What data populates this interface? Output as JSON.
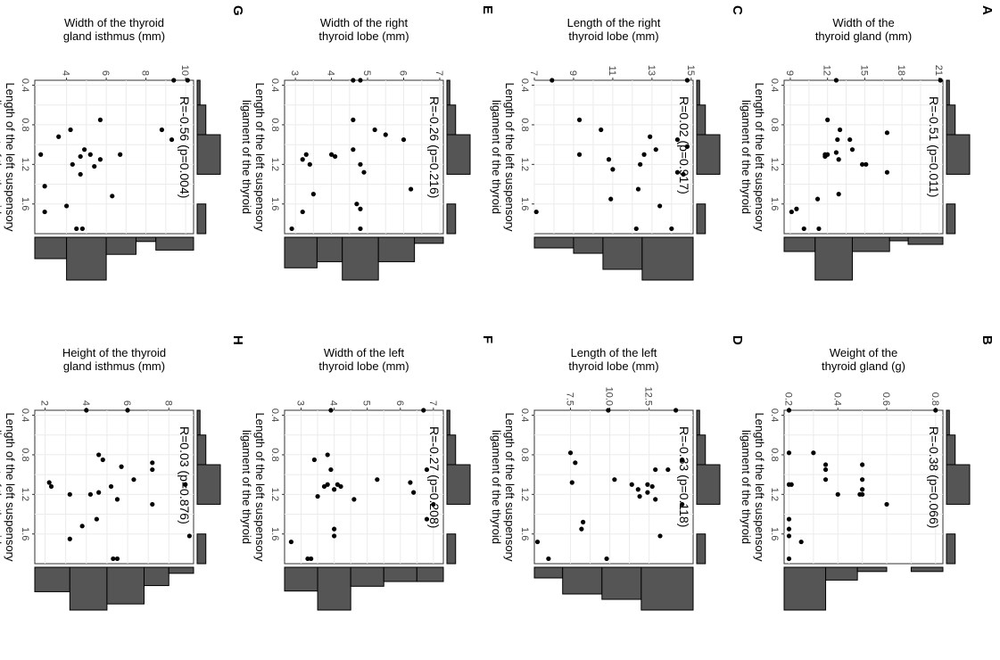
{
  "chart_data": [
    {
      "panel": "A",
      "type": "scatter",
      "ylabel_lines": [
        "Width of the",
        "thyroid gland (mm)"
      ],
      "xlabel_lines": [
        "Length of the left suspensory",
        "ligament of the thyroid"
      ],
      "annotation": "R=-0.51 (p=0.011)",
      "xlim": [
        0.35,
        1.9
      ],
      "ylim": [
        8.5,
        21.3
      ],
      "xticks": [
        0.4,
        0.8,
        1.2,
        1.6
      ],
      "yticks": [
        9,
        12,
        15,
        18,
        21
      ],
      "x": [
        0.35,
        0.35,
        0.75,
        0.85,
        0.88,
        0.95,
        0.95,
        1.05,
        1.08,
        1.1,
        1.1,
        1.12,
        1.15,
        1.2,
        1.2,
        1.28,
        1.5,
        1.55,
        1.65,
        1.68,
        1.85,
        1.85
      ],
      "y": [
        21.1,
        12.7,
        12.0,
        13.0,
        16.8,
        12.8,
        13.8,
        14.0,
        12.7,
        11.8,
        12.0,
        11.8,
        12.9,
        14.8,
        15.1,
        16.8,
        12.9,
        11.2,
        9.5,
        9.1,
        10.1,
        11.3
      ],
      "marginal_x_bins": [
        [
          0.3,
          0.6
        ],
        [
          0.6,
          0.9
        ],
        [
          0.9,
          1.3
        ],
        [
          1.3,
          1.6
        ],
        [
          1.6,
          1.9
        ]
      ],
      "marginal_x_counts": [
        1,
        3,
        8,
        0,
        3
      ],
      "marginal_y_bins": [
        [
          8.5,
          11
        ],
        [
          11,
          14
        ],
        [
          14,
          17
        ],
        [
          17,
          18.5
        ],
        [
          18.5,
          21.3
        ]
      ],
      "marginal_y_counts": [
        4,
        12,
        4,
        1,
        2
      ]
    },
    {
      "panel": "B",
      "type": "scatter",
      "ylabel_lines": [
        "Weight of the",
        "thyroid gland (g)"
      ],
      "xlabel_lines": [
        "Length of the left suspensory",
        "ligament of the thyroid"
      ],
      "annotation": "R=-0.38 (p=0.066)",
      "xlim": [
        0.35,
        1.9
      ],
      "ylim": [
        0.18,
        0.83
      ],
      "xticks": [
        0.4,
        0.8,
        1.2,
        1.6
      ],
      "yticks": [
        0.2,
        0.4,
        0.6,
        0.8
      ],
      "x": [
        0.35,
        0.35,
        0.78,
        0.78,
        0.9,
        0.95,
        1.05,
        0.9,
        1.05,
        1.1,
        1.1,
        1.15,
        1.2,
        1.2,
        1.2,
        1.3,
        1.45,
        1.55,
        1.62,
        1.68,
        1.85
      ],
      "y": [
        0.8,
        0.2,
        0.2,
        0.3,
        0.35,
        0.35,
        0.35,
        0.5,
        0.5,
        0.2,
        0.21,
        0.5,
        0.4,
        0.5,
        0.49,
        0.6,
        0.2,
        0.2,
        0.2,
        0.25,
        0.2
      ],
      "marginal_x_bins": [
        [
          0.3,
          0.6
        ],
        [
          0.6,
          0.9
        ],
        [
          0.9,
          1.3
        ],
        [
          1.3,
          1.6
        ],
        [
          1.6,
          1.9
        ]
      ],
      "marginal_x_counts": [
        1,
        3,
        8,
        0,
        3
      ],
      "marginal_y_bins": [
        [
          0.18,
          0.35
        ],
        [
          0.35,
          0.48
        ],
        [
          0.48,
          0.6
        ],
        [
          0.6,
          0.7
        ],
        [
          0.7,
          0.83
        ]
      ],
      "marginal_y_counts": [
        10,
        3,
        1,
        0,
        1
      ]
    },
    {
      "panel": "C",
      "type": "scatter",
      "ylabel_lines": [
        "Length of the right",
        "thyroid lobe (mm)"
      ],
      "xlabel_lines": [
        "Length of the left suspensory",
        "ligament of the thyroid"
      ],
      "annotation": "R=0.02 (p=0.917)",
      "xlim": [
        0.35,
        1.9
      ],
      "ylim": [
        7,
        15.1
      ],
      "xticks": [
        0.4,
        0.8,
        1.2,
        1.6
      ],
      "yticks": [
        7,
        9,
        11,
        13,
        15
      ],
      "x": [
        0.35,
        0.35,
        0.75,
        0.85,
        0.92,
        0.95,
        1.02,
        1.05,
        1.1,
        1.1,
        1.15,
        1.2,
        1.25,
        1.28,
        1.3,
        1.45,
        1.55,
        1.62,
        1.68,
        1.85,
        1.85
      ],
      "y": [
        14.8,
        7.9,
        9.3,
        10.4,
        12.9,
        14.3,
        14.8,
        13.2,
        12.6,
        9.3,
        10.8,
        12.4,
        11.0,
        14.3,
        14.6,
        12.3,
        10.9,
        13.4,
        7.1,
        12.2,
        14.0
      ],
      "marginal_x_bins": [
        [
          0.3,
          0.6
        ],
        [
          0.6,
          0.9
        ],
        [
          0.9,
          1.3
        ],
        [
          1.3,
          1.6
        ],
        [
          1.6,
          1.9
        ]
      ],
      "marginal_x_counts": [
        1,
        3,
        8,
        0,
        3
      ],
      "marginal_y_bins": [
        [
          7,
          9
        ],
        [
          9,
          10.5
        ],
        [
          10.5,
          12.5
        ],
        [
          12.5,
          15.1
        ]
      ],
      "marginal_y_counts": [
        2,
        3,
        6,
        8
      ]
    },
    {
      "panel": "D",
      "type": "scatter",
      "ylabel_lines": [
        "Length of the left",
        "thyroid lobe (mm)"
      ],
      "xlabel_lines": [
        "Length of the left suspensory",
        "ligament of the thyroid"
      ],
      "annotation": "R=-0.33 (p=0.118)",
      "xlim": [
        0.35,
        1.9
      ],
      "ylim": [
        5.2,
        15.3
      ],
      "xticks": [
        0.4,
        0.8,
        1.2,
        1.6
      ],
      "yticks": [
        7.5,
        10.0,
        12.5
      ],
      "x": [
        0.35,
        0.35,
        0.78,
        0.85,
        0.88,
        0.95,
        0.95,
        1.05,
        1.08,
        1.1,
        1.1,
        1.12,
        1.15,
        1.18,
        1.22,
        1.25,
        1.3,
        1.48,
        1.55,
        1.62,
        1.68,
        1.85,
        1.85
      ],
      "y": [
        14.2,
        9.9,
        7.5,
        14.6,
        7.8,
        13.7,
        12.9,
        10.3,
        7.6,
        11.4,
        12.4,
        12.7,
        11.8,
        12.4,
        11.9,
        12.9,
        14.6,
        8.3,
        8.2,
        13.2,
        5.4,
        9.8,
        6.1
      ],
      "marginal_x_bins": [
        [
          0.3,
          0.6
        ],
        [
          0.6,
          0.9
        ],
        [
          0.9,
          1.3
        ],
        [
          1.3,
          1.6
        ],
        [
          1.6,
          1.9
        ]
      ],
      "marginal_x_counts": [
        1,
        3,
        8,
        0,
        3
      ],
      "marginal_y_bins": [
        [
          5.2,
          7
        ],
        [
          7,
          9.5
        ],
        [
          9.5,
          12
        ],
        [
          12,
          15.3
        ]
      ],
      "marginal_y_counts": [
        2,
        5,
        6,
        8
      ]
    },
    {
      "panel": "E",
      "type": "scatter",
      "ylabel_lines": [
        "Width of the right",
        "thyroid lobe (mm)"
      ],
      "xlabel_lines": [
        "Length of the left suspensory",
        "ligament of the thyroid"
      ],
      "annotation": "R=-0.26 (p=0.216)",
      "xlim": [
        0.35,
        1.9
      ],
      "ylim": [
        2.7,
        7.1
      ],
      "xticks": [
        0.4,
        0.8,
        1.2,
        1.6
      ],
      "yticks": [
        3,
        4,
        5,
        6,
        7
      ],
      "x": [
        0.35,
        0.35,
        0.75,
        0.85,
        0.9,
        0.95,
        1.05,
        1.1,
        1.1,
        1.12,
        1.15,
        1.2,
        1.2,
        1.28,
        1.45,
        1.5,
        1.6,
        1.65,
        1.68,
        1.85,
        1.85
      ],
      "y": [
        4.6,
        4.8,
        4.6,
        5.2,
        5.5,
        6.0,
        4.6,
        4.0,
        3.3,
        4.1,
        3.2,
        3.4,
        4.8,
        4.9,
        6.2,
        3.5,
        4.7,
        4.8,
        3.2,
        2.9,
        4.8
      ],
      "marginal_x_bins": [
        [
          0.3,
          0.6
        ],
        [
          0.6,
          0.9
        ],
        [
          0.9,
          1.3
        ],
        [
          1.3,
          1.6
        ],
        [
          1.6,
          1.9
        ]
      ],
      "marginal_x_counts": [
        1,
        3,
        8,
        0,
        3
      ],
      "marginal_y_bins": [
        [
          2.7,
          3.6
        ],
        [
          3.6,
          4.3
        ],
        [
          4.3,
          5.3
        ],
        [
          5.3,
          6.3
        ],
        [
          6.3,
          7.1
        ]
      ],
      "marginal_y_counts": [
        5,
        4,
        7,
        4,
        1
      ]
    },
    {
      "panel": "F",
      "type": "scatter",
      "ylabel_lines": [
        "Width of the left",
        "thyroid lobe (mm)"
      ],
      "xlabel_lines": [
        "Length of the left suspensory",
        "ligament of the thyroid"
      ],
      "annotation": "R=-0.27 (p=0.208)",
      "xlim": [
        0.35,
        1.9
      ],
      "ylim": [
        2.5,
        7.3
      ],
      "xticks": [
        0.4,
        0.8,
        1.2,
        1.6
      ],
      "yticks": [
        3,
        4,
        5,
        6,
        7
      ],
      "x": [
        0.35,
        0.35,
        0.8,
        0.85,
        0.95,
        0.95,
        1.05,
        1.08,
        1.1,
        1.1,
        1.12,
        1.12,
        1.15,
        1.18,
        1.22,
        1.25,
        1.3,
        1.45,
        1.55,
        1.62,
        1.68,
        1.85,
        1.85
      ],
      "y": [
        6.7,
        3.9,
        3.8,
        3.4,
        3.9,
        6.8,
        5.3,
        6.3,
        3.8,
        4.1,
        4.2,
        3.7,
        4.0,
        6.4,
        3.5,
        4.6,
        7.0,
        6.8,
        4.0,
        4.0,
        2.7,
        3.3,
        3.2
      ],
      "marginal_x_bins": [
        [
          0.3,
          0.6
        ],
        [
          0.6,
          0.9
        ],
        [
          0.9,
          1.3
        ],
        [
          1.3,
          1.6
        ],
        [
          1.6,
          1.9
        ]
      ],
      "marginal_x_counts": [
        1,
        3,
        8,
        0,
        3
      ],
      "marginal_y_bins": [
        [
          2.5,
          3.5
        ],
        [
          3.5,
          4.5
        ],
        [
          4.5,
          5.5
        ],
        [
          5.5,
          6.5
        ],
        [
          6.5,
          7.3
        ]
      ],
      "marginal_y_counts": [
        5,
        9,
        4,
        3,
        3
      ]
    },
    {
      "panel": "G",
      "type": "scatter",
      "ylabel_lines": [
        "Width of the thyroid",
        "gland isthmus (mm)"
      ],
      "xlabel_lines": [
        "Length of the left suspensory",
        "ligament of the thyroid"
      ],
      "annotation": "R=-0.56 (p=0.004)",
      "xlim": [
        0.35,
        1.9
      ],
      "ylim": [
        2.4,
        10.4
      ],
      "xticks": [
        0.4,
        0.8,
        1.2,
        1.6
      ],
      "yticks": [
        4,
        6,
        8,
        10
      ],
      "x": [
        0.35,
        0.35,
        0.75,
        0.85,
        0.85,
        0.92,
        0.95,
        1.05,
        1.1,
        1.1,
        1.1,
        1.12,
        1.15,
        1.2,
        1.22,
        1.3,
        1.42,
        1.52,
        1.62,
        1.68,
        1.85,
        1.85
      ],
      "y": [
        10.1,
        9.4,
        5.7,
        8.8,
        4.2,
        3.6,
        9.3,
        4.9,
        6.7,
        2.7,
        5.2,
        4.7,
        5.7,
        4.3,
        5.4,
        4.7,
        2.9,
        6.3,
        4.0,
        2.9,
        4.5,
        4.8
      ],
      "marginal_x_bins": [
        [
          0.3,
          0.6
        ],
        [
          0.6,
          0.9
        ],
        [
          0.9,
          1.3
        ],
        [
          1.3,
          1.6
        ],
        [
          1.6,
          1.9
        ]
      ],
      "marginal_x_counts": [
        1,
        3,
        8,
        0,
        3
      ],
      "marginal_y_bins": [
        [
          2.4,
          4
        ],
        [
          4,
          6
        ],
        [
          6,
          7.5
        ],
        [
          7.5,
          8.5
        ],
        [
          8.5,
          10.4
        ]
      ],
      "marginal_y_counts": [
        5,
        10,
        4,
        1,
        3
      ]
    },
    {
      "panel": "H",
      "type": "scatter",
      "ylabel_lines": [
        "Height of the thyroid",
        "gland isthmus (mm)"
      ],
      "xlabel_lines": [
        "Length of the left suspensory",
        "ligament of the thyroid"
      ],
      "annotation": "R=0.03 (p=0.876)",
      "xlim": [
        0.35,
        1.9
      ],
      "ylim": [
        1.5,
        9.2
      ],
      "xticks": [
        0.4,
        0.8,
        1.2,
        1.6
      ],
      "yticks": [
        2,
        4,
        6,
        8
      ],
      "x": [
        0.35,
        0.35,
        0.8,
        0.85,
        0.88,
        0.92,
        0.95,
        1.05,
        1.08,
        1.1,
        1.12,
        1.12,
        1.18,
        1.2,
        1.2,
        1.25,
        1.3,
        1.45,
        1.52,
        1.62,
        1.65,
        1.85,
        1.85
      ],
      "y": [
        4.0,
        6.0,
        4.6,
        4.8,
        7.2,
        5.7,
        7.2,
        6.3,
        2.2,
        8.8,
        5.2,
        2.3,
        4.6,
        3.2,
        4.2,
        5.5,
        7.2,
        4.5,
        3.8,
        9.0,
        3.2,
        5.3,
        5.5
      ],
      "marginal_x_bins": [
        [
          0.3,
          0.6
        ],
        [
          0.6,
          0.9
        ],
        [
          0.9,
          1.3
        ],
        [
          1.3,
          1.6
        ],
        [
          1.6,
          1.9
        ]
      ],
      "marginal_x_counts": [
        1,
        3,
        8,
        0,
        3
      ],
      "marginal_y_bins": [
        [
          1.5,
          3.2
        ],
        [
          3.2,
          5
        ],
        [
          5,
          6.8
        ],
        [
          6.8,
          8
        ],
        [
          8,
          9.2
        ]
      ],
      "marginal_y_counts": [
        4,
        7,
        6,
        3,
        1
      ]
    }
  ],
  "colors": {
    "point": "#000000",
    "histogram_fill": "#555555",
    "histogram_stroke": "#000000",
    "grid": "#ebebeb",
    "panel_border": "#333333"
  }
}
